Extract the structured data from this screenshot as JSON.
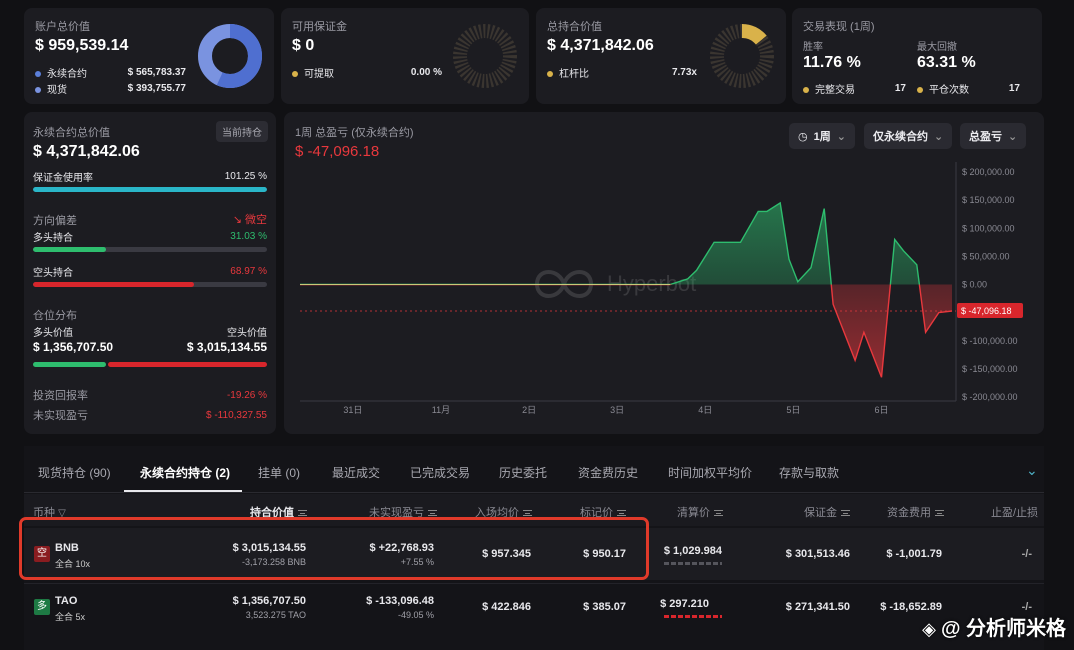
{
  "summary": {
    "account": {
      "label": "账户总价值",
      "value": "$ 959,539.14",
      "items": [
        {
          "label": "永续合约",
          "value": "$ 565,783.37",
          "color": "#5b7fd9"
        },
        {
          "label": "现货",
          "value": "$ 393,755.77",
          "color": "#7a93e0"
        }
      ]
    },
    "margin": {
      "label": "可用保证金",
      "value": "$ 0",
      "item_label": "可提取",
      "item_value": "0.00 %",
      "color": "#d9b24a"
    },
    "holdings": {
      "label": "总持合价值",
      "value": "$ 4,371,842.06",
      "item_label": "杠杆比",
      "item_value": "7.73x",
      "color": "#d9b24a"
    },
    "performance": {
      "label": "交易表现 (1周)",
      "win_rate_label": "胜率",
      "win_rate": "11.76 %",
      "drawdown_label": "最大回撤",
      "drawdown": "63.31 %",
      "trades_label": "完整交易",
      "trades": "17",
      "close_label": "平仓次数",
      "close": "17",
      "color": "#d9b24a"
    }
  },
  "perp": {
    "label": "永续合约总价值",
    "badge": "当前持仓",
    "value": "$ 4,371,842.06",
    "margin_usage_label": "保证金使用率",
    "margin_usage": "101.25 %",
    "margin_usage_pct": 100,
    "bias_label": "方向偏差",
    "bias_value": "微空",
    "long_label": "多头持合",
    "long_pct": "31.03 %",
    "long_frac": 0.3103,
    "short_label": "空头持合",
    "short_pct": "68.97 %",
    "short_frac": 0.6897,
    "dist_label": "仓位分布",
    "long_value_label": "多头价值",
    "long_value": "$ 1,356,707.50",
    "short_value_label": "空头价值",
    "short_value": "$ 3,015,134.55",
    "roi_label": "投资回报率",
    "roi": "-19.26 %",
    "upnl_label": "未实现盈亏",
    "upnl": "$ -110,327.55"
  },
  "chart_panel": {
    "title": "1周 总盈亏 (仅永续合约)",
    "value": "$ -47,096.18",
    "period_select": "1周",
    "scope_select": "仅永续合约",
    "metric_select": "总盈亏",
    "watermark": "Hyperbot"
  },
  "chart_data": {
    "type": "area",
    "title": "1周 总盈亏 (仅永续合约)",
    "x_ticks": [
      "31日",
      "11月",
      "2日",
      "3日",
      "4日",
      "5日",
      "6日"
    ],
    "y_ticks": [
      "$ 200,000.00",
      "$ 150,000.00",
      "$ 100,000.00",
      "$ 50,000.00",
      "$ 0.00",
      "$ -50,000.00",
      "$ -100,000.00",
      "$ -150,000.00",
      "$ -200,000.00"
    ],
    "ylim": [
      -200000,
      200000
    ],
    "xlim": [
      0,
      7.4
    ],
    "current_label": "$ -47,096.18",
    "current_value": -47096.18,
    "positive_color": "#2ebd6e",
    "negative_color": "#e8383d",
    "series": [
      {
        "x": [
          0,
          4.2,
          4.4,
          4.5,
          4.7,
          4.8,
          5.0,
          5.2,
          5.3,
          5.45,
          5.55,
          5.65,
          5.8,
          5.95,
          6.05,
          6.3,
          6.4,
          6.6,
          6.75,
          6.85,
          7.0,
          7.1,
          7.25,
          7.4
        ],
        "y": [
          0,
          0,
          10000,
          25000,
          75000,
          75000,
          75000,
          130000,
          130000,
          145000,
          45000,
          5000,
          30000,
          135000,
          -35000,
          -135000,
          -85000,
          -165000,
          80000,
          60000,
          35000,
          -85000,
          -50000,
          -47096
        ]
      }
    ]
  },
  "tabs": [
    {
      "label": "现货持仓 (90)"
    },
    {
      "label": "永续合约持仓 (2)",
      "active": true
    },
    {
      "label": "挂单 (0)"
    },
    {
      "label": "最近成交"
    },
    {
      "label": "已完成交易"
    },
    {
      "label": "历史委托"
    },
    {
      "label": "资金费历史"
    },
    {
      "label": "时间加权平均价"
    },
    {
      "label": "存款与取款"
    }
  ],
  "table": {
    "headers": [
      "币种",
      "持合价值",
      "未实现盈亏",
      "入场均价",
      "标记价",
      "清算价",
      "保证金",
      "资金费用",
      "止盈/止损"
    ],
    "rows": [
      {
        "side": "空",
        "side_color": "#e8383d",
        "coin": "BNB",
        "leverage": "全合 10x",
        "value": "$ 3,015,134.55",
        "size": "-3,173.258 BNB",
        "pnl": "$ +22,768.93",
        "pnl_pct": "+7.55 %",
        "pnl_positive": true,
        "entry": "$ 957.345",
        "mark": "$ 950.17",
        "liq": "$ 1,029.984",
        "margin": "$ 301,513.46",
        "funding": "$ -1,001.79",
        "tpsl": "-/-",
        "highlighted": true
      },
      {
        "side": "多",
        "side_color": "#2ebd6e",
        "coin": "TAO",
        "leverage": "全合 5x",
        "value": "$ 1,356,707.50",
        "size": "3,523.275 TAO",
        "pnl": "$ -133,096.48",
        "pnl_pct": "-49.05 %",
        "pnl_positive": false,
        "entry": "$ 422.846",
        "mark": "$ 385.07",
        "liq": "$ 297.210",
        "margin": "$ 271,341.50",
        "funding": "$ -18,652.89",
        "tpsl": "-/-",
        "highlighted": false
      }
    ]
  },
  "watermark_footer": "@ 分析师米格"
}
